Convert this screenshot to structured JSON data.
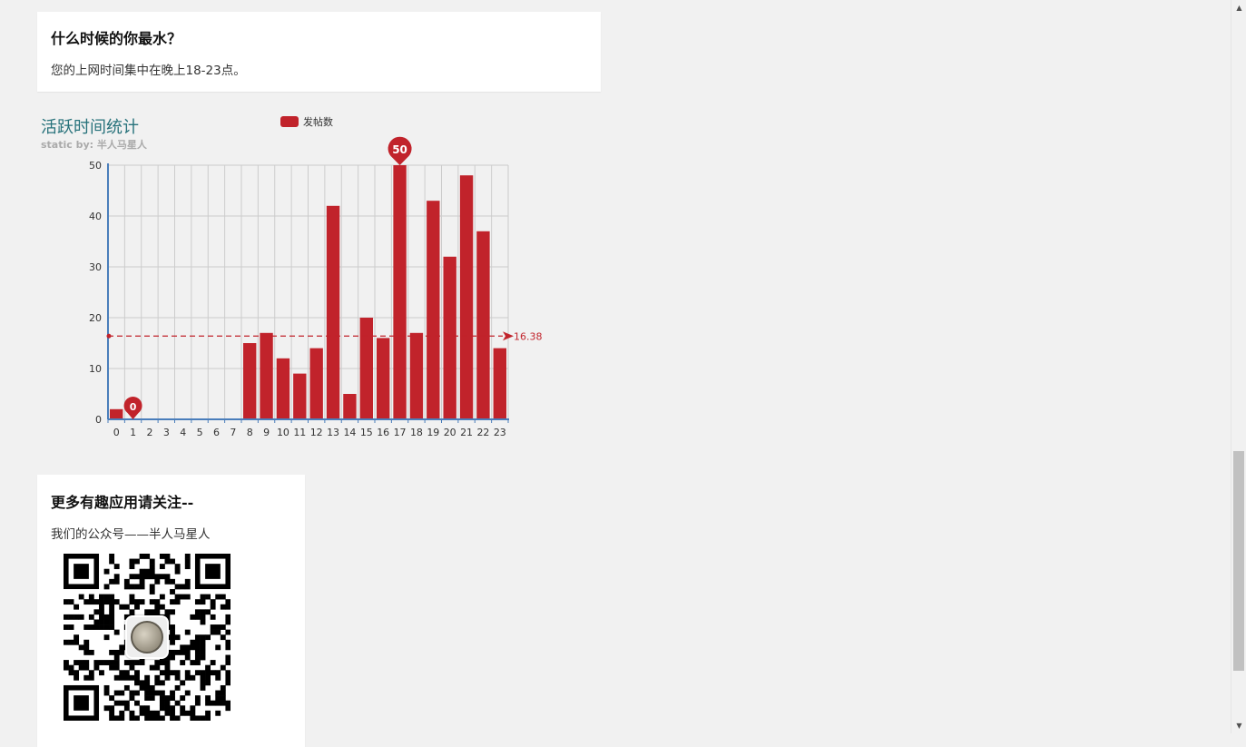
{
  "card_active": {
    "title": "什么时候的你最水？",
    "text": "您的上网时间集中在晚上18-23点。"
  },
  "card_follow": {
    "title": "更多有趣应用请关注--",
    "text": "我们的公众号——半人马星人"
  },
  "chart_data": {
    "type": "bar",
    "title": "活跃时间统计",
    "subtitle": "static by: 半人马星人",
    "legend": [
      "发帖数"
    ],
    "legend_position": "top",
    "categories": [
      "0",
      "1",
      "2",
      "3",
      "4",
      "5",
      "6",
      "7",
      "8",
      "9",
      "10",
      "11",
      "12",
      "13",
      "14",
      "15",
      "16",
      "17",
      "18",
      "19",
      "20",
      "21",
      "22",
      "23"
    ],
    "series": [
      {
        "name": "发帖数",
        "values": [
          2,
          0,
          0,
          0,
          0,
          0,
          0,
          0,
          15,
          17,
          12,
          9,
          14,
          42,
          5,
          20,
          16,
          50,
          17,
          43,
          32,
          48,
          37,
          14
        ]
      }
    ],
    "yticks": [
      "0",
      "10",
      "20",
      "30",
      "40",
      "50"
    ],
    "ylim": [
      0,
      50
    ],
    "grid": true,
    "mark_points": [
      {
        "label": "50",
        "category": "17",
        "value": 50
      },
      {
        "label": "0",
        "category": "1",
        "value": 0
      }
    ],
    "mark_line": {
      "label": "16.38",
      "value": 16.38
    },
    "colors": {
      "bar": "#c1232b",
      "title": "#27727b",
      "subtitle": "#aaaaaa",
      "axis": "#4a7ebb",
      "grid": "#cccccc"
    }
  },
  "qr_code": {
    "icon": "qr-code-icon"
  }
}
